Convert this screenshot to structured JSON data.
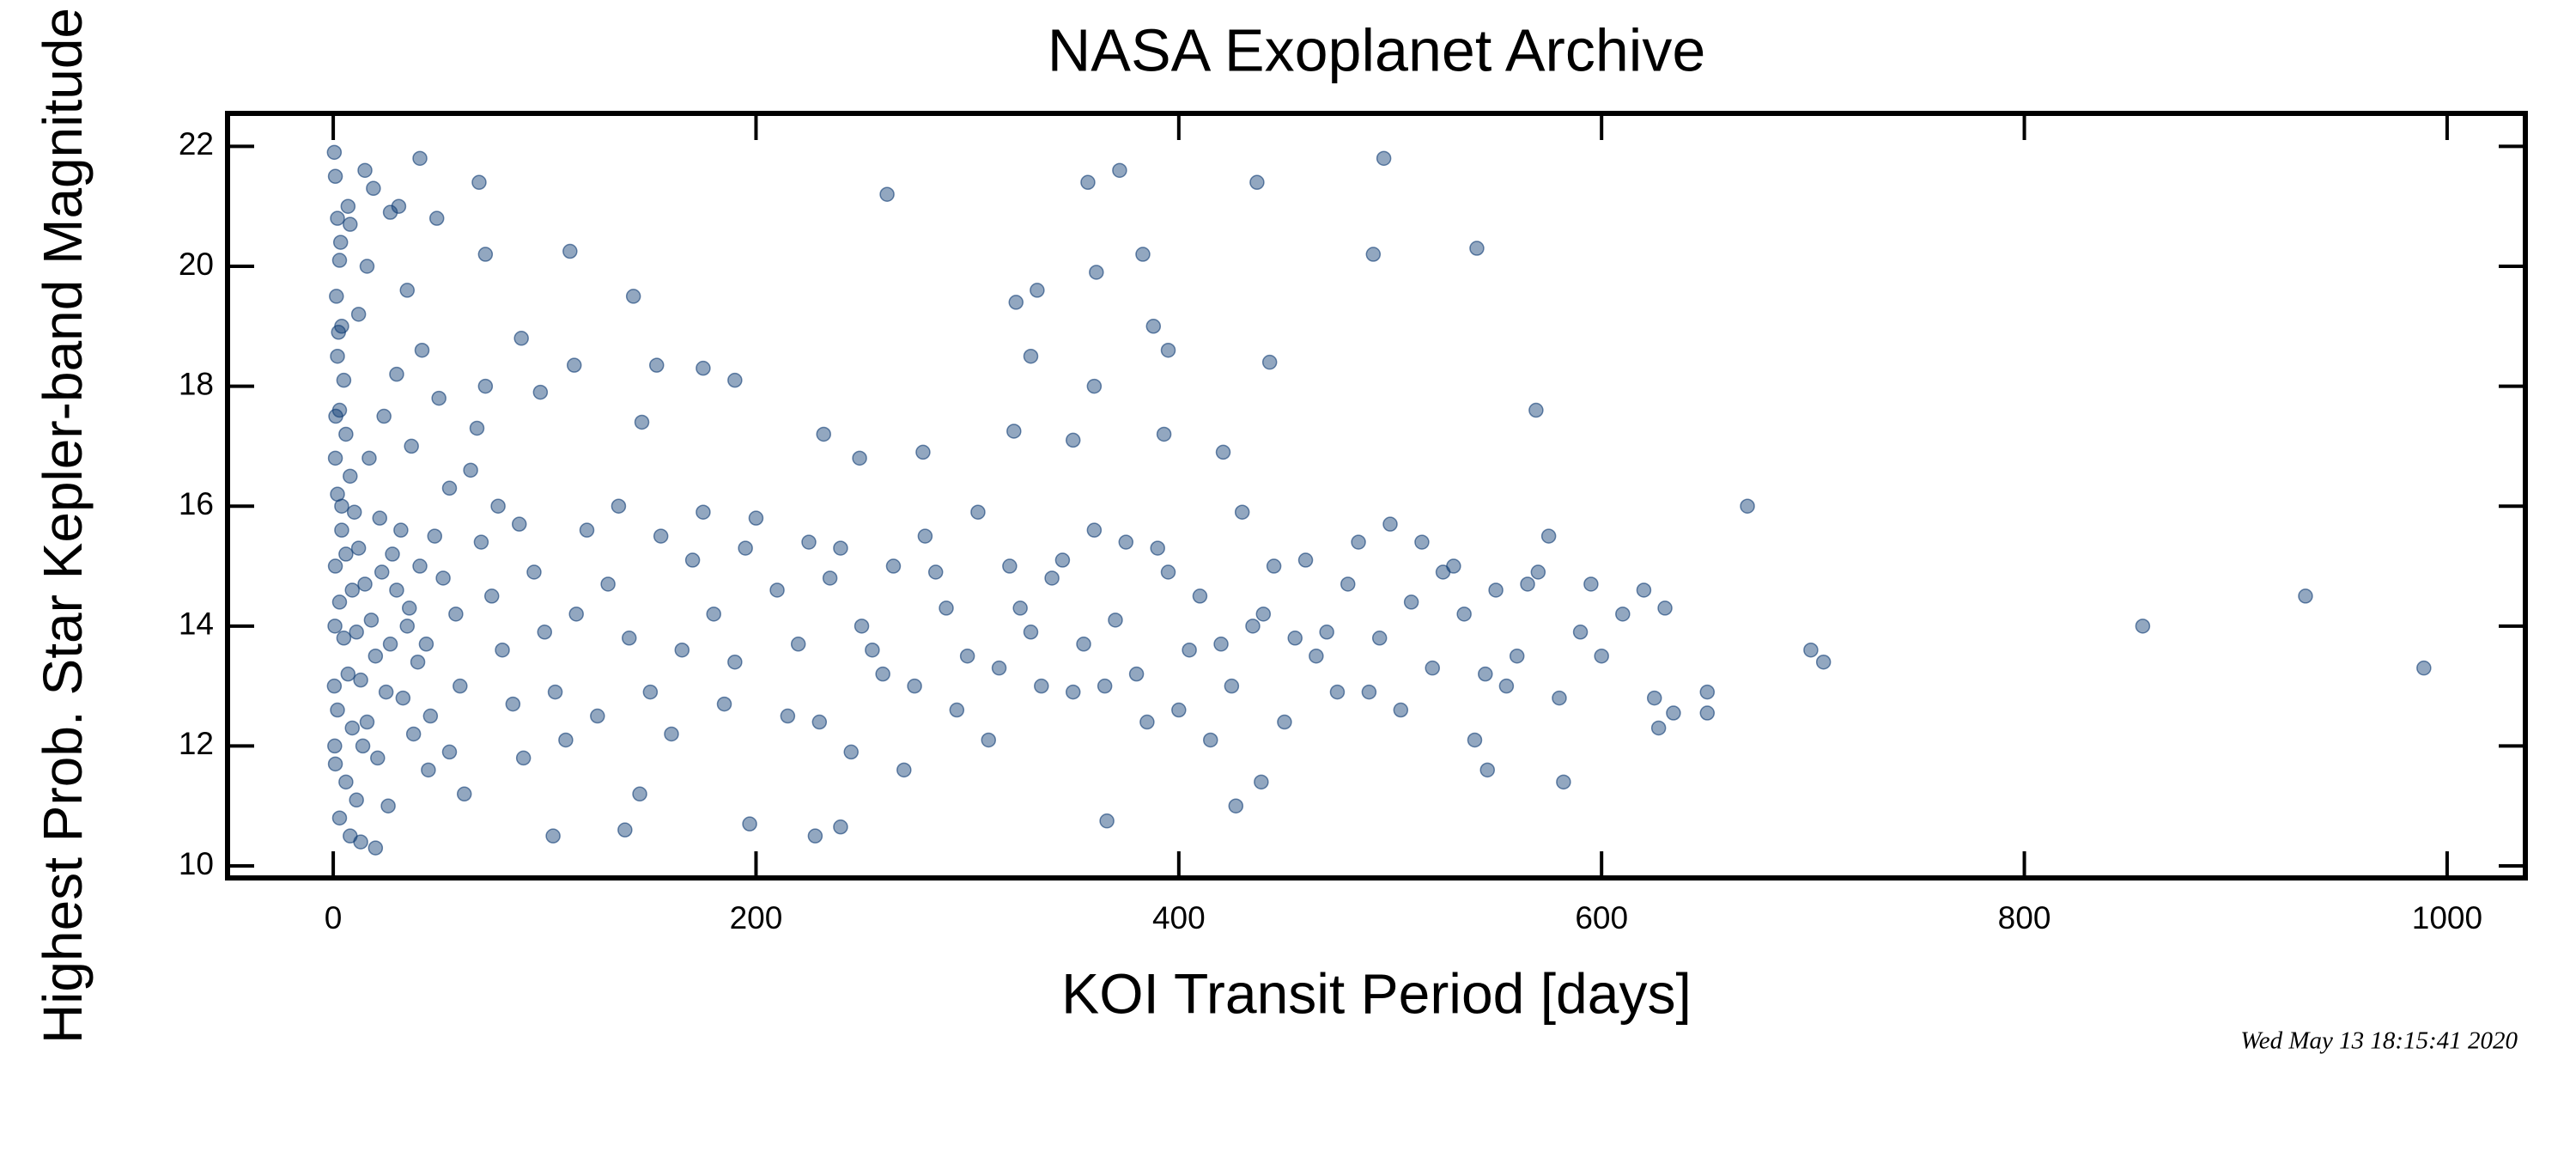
{
  "chart_data": {
    "type": "scatter",
    "title": "NASA Exoplanet Archive",
    "x_label": "KOI Transit Period [days]",
    "y_label": "Highest Prob. Star Kepler-band Magnitude",
    "timestamp": "Wed May 13 18:15:41 2020",
    "color": "#0d3b73",
    "xlim": [
      -50,
      1037
    ],
    "ylim": [
      9.8,
      22.55
    ],
    "xticks": [
      0,
      200,
      400,
      600,
      800,
      1000
    ],
    "yticks": [
      10,
      12,
      14,
      16,
      18,
      20,
      22
    ],
    "x": [
      669,
      699,
      705,
      856,
      933,
      989,
      497,
      541,
      492,
      437,
      372,
      357,
      262,
      569,
      443,
      361,
      383,
      333,
      323,
      388,
      395,
      330,
      360,
      142,
      112,
      72,
      69,
      41,
      49,
      190,
      175,
      114,
      153,
      89,
      98,
      146,
      232,
      279,
      322,
      350,
      393,
      421,
      249,
      104,
      228,
      240,
      366,
      427,
      582,
      546,
      439,
      197,
      138,
      650,
      650,
      634,
      627,
      0.5,
      1,
      2,
      3,
      1.5,
      4,
      2,
      5,
      3,
      6,
      1,
      8,
      2,
      10,
      4,
      12,
      1,
      15,
      3,
      18,
      5,
      20,
      7,
      25,
      2,
      9,
      14,
      1,
      6,
      11,
      3,
      8,
      13,
      20,
      22,
      28,
      30,
      35,
      40,
      33,
      38,
      45,
      26,
      17,
      24,
      30,
      12,
      16,
      8,
      19,
      27,
      35,
      42,
      50,
      55,
      48,
      52,
      58,
      60,
      46,
      55,
      62,
      4,
      6,
      9,
      11,
      13,
      16,
      21,
      23,
      27,
      32,
      36,
      41,
      44,
      0.8,
      0.5,
      0.7,
      1.2,
      2.5,
      3.5,
      7,
      15,
      31,
      37,
      65,
      70,
      75,
      80,
      85,
      90,
      68,
      72,
      78,
      88,
      95,
      100,
      105,
      110,
      120,
      130,
      140,
      150,
      160,
      170,
      180,
      190,
      200,
      210,
      220,
      230,
      240,
      250,
      260,
      270,
      280,
      290,
      300,
      310,
      320,
      330,
      340,
      350,
      360,
      370,
      380,
      390,
      400,
      410,
      420,
      430,
      440,
      450,
      460,
      470,
      480,
      490,
      500,
      510,
      520,
      530,
      540,
      550,
      560,
      570,
      580,
      590,
      600,
      610,
      620,
      630,
      125,
      145,
      175,
      215,
      245,
      275,
      305,
      335,
      365,
      385,
      395,
      425,
      455,
      475,
      505,
      525,
      555,
      575,
      135,
      165,
      195,
      235,
      265,
      295,
      325,
      355,
      375,
      405,
      435,
      465,
      495,
      515,
      545,
      115,
      155,
      185,
      225,
      255,
      285,
      315,
      345,
      415,
      445,
      485,
      535,
      565,
      595,
      625
    ],
    "y": [
      16.0,
      13.6,
      13.4,
      14.0,
      14.5,
      13.3,
      21.8,
      20.3,
      20.2,
      21.4,
      21.6,
      21.4,
      21.2,
      17.6,
      18.4,
      19.9,
      20.2,
      19.6,
      19.4,
      19.0,
      18.6,
      18.5,
      18.0,
      19.5,
      20.25,
      20.2,
      21.4,
      21.8,
      20.8,
      18.1,
      18.3,
      18.35,
      18.35,
      18.8,
      17.9,
      17.4,
      17.2,
      16.9,
      17.25,
      17.1,
      17.2,
      16.9,
      16.8,
      10.5,
      10.5,
      10.65,
      10.75,
      11.0,
      11.4,
      11.6,
      11.4,
      10.7,
      10.6,
      12.9,
      12.55,
      12.55,
      12.3,
      21.9,
      21.5,
      20.8,
      20.1,
      19.5,
      19.0,
      18.5,
      18.1,
      17.6,
      17.2,
      16.8,
      16.5,
      16.2,
      15.9,
      15.6,
      15.3,
      15.0,
      14.7,
      14.4,
      14.1,
      13.8,
      13.5,
      13.2,
      12.9,
      12.6,
      12.3,
      12.0,
      11.7,
      11.4,
      11.1,
      10.8,
      10.5,
      10.4,
      10.3,
      15.8,
      15.2,
      14.6,
      14.0,
      13.4,
      12.8,
      12.2,
      11.6,
      11.0,
      16.8,
      17.5,
      18.2,
      19.2,
      20.0,
      20.7,
      21.3,
      20.9,
      19.6,
      18.6,
      17.8,
      16.3,
      15.5,
      14.8,
      14.2,
      13.0,
      12.5,
      11.9,
      11.2,
      16.0,
      15.2,
      14.6,
      13.9,
      13.1,
      12.4,
      11.8,
      14.9,
      13.7,
      15.6,
      14.3,
      15.0,
      13.7,
      14.0,
      13.0,
      12.0,
      17.5,
      18.9,
      20.4,
      21.0,
      21.6,
      21.0,
      17.0,
      16.6,
      15.4,
      14.5,
      13.6,
      12.7,
      11.8,
      17.3,
      18.0,
      16.0,
      15.7,
      14.9,
      13.9,
      12.9,
      12.1,
      15.6,
      14.7,
      13.8,
      12.9,
      12.2,
      15.1,
      14.2,
      13.4,
      15.8,
      14.6,
      13.7,
      12.4,
      15.3,
      14.0,
      13.2,
      11.6,
      15.5,
      14.3,
      13.5,
      12.1,
      15.0,
      13.9,
      14.8,
      12.9,
      15.6,
      14.1,
      13.2,
      15.3,
      12.6,
      14.5,
      13.7,
      15.9,
      14.2,
      12.4,
      15.1,
      13.9,
      14.7,
      12.9,
      15.7,
      14.4,
      13.3,
      15.0,
      12.1,
      14.6,
      13.5,
      14.9,
      12.8,
      13.9,
      13.5,
      14.2,
      14.6,
      14.3,
      12.5,
      11.2,
      15.9,
      12.5,
      11.9,
      13.0,
      15.9,
      13.0,
      13.0,
      12.4,
      14.9,
      13.0,
      13.8,
      12.9,
      12.6,
      14.9,
      13.0,
      15.5,
      16.0,
      13.6,
      15.3,
      14.8,
      15.0,
      12.6,
      14.3,
      13.7,
      15.4,
      13.6,
      14.0,
      13.5,
      13.8,
      15.4,
      13.2,
      14.2,
      15.5,
      12.7,
      15.4,
      13.6,
      14.9,
      13.3,
      15.1,
      12.1,
      15.0,
      15.4,
      14.2,
      14.7,
      14.7,
      12.8
    ]
  }
}
